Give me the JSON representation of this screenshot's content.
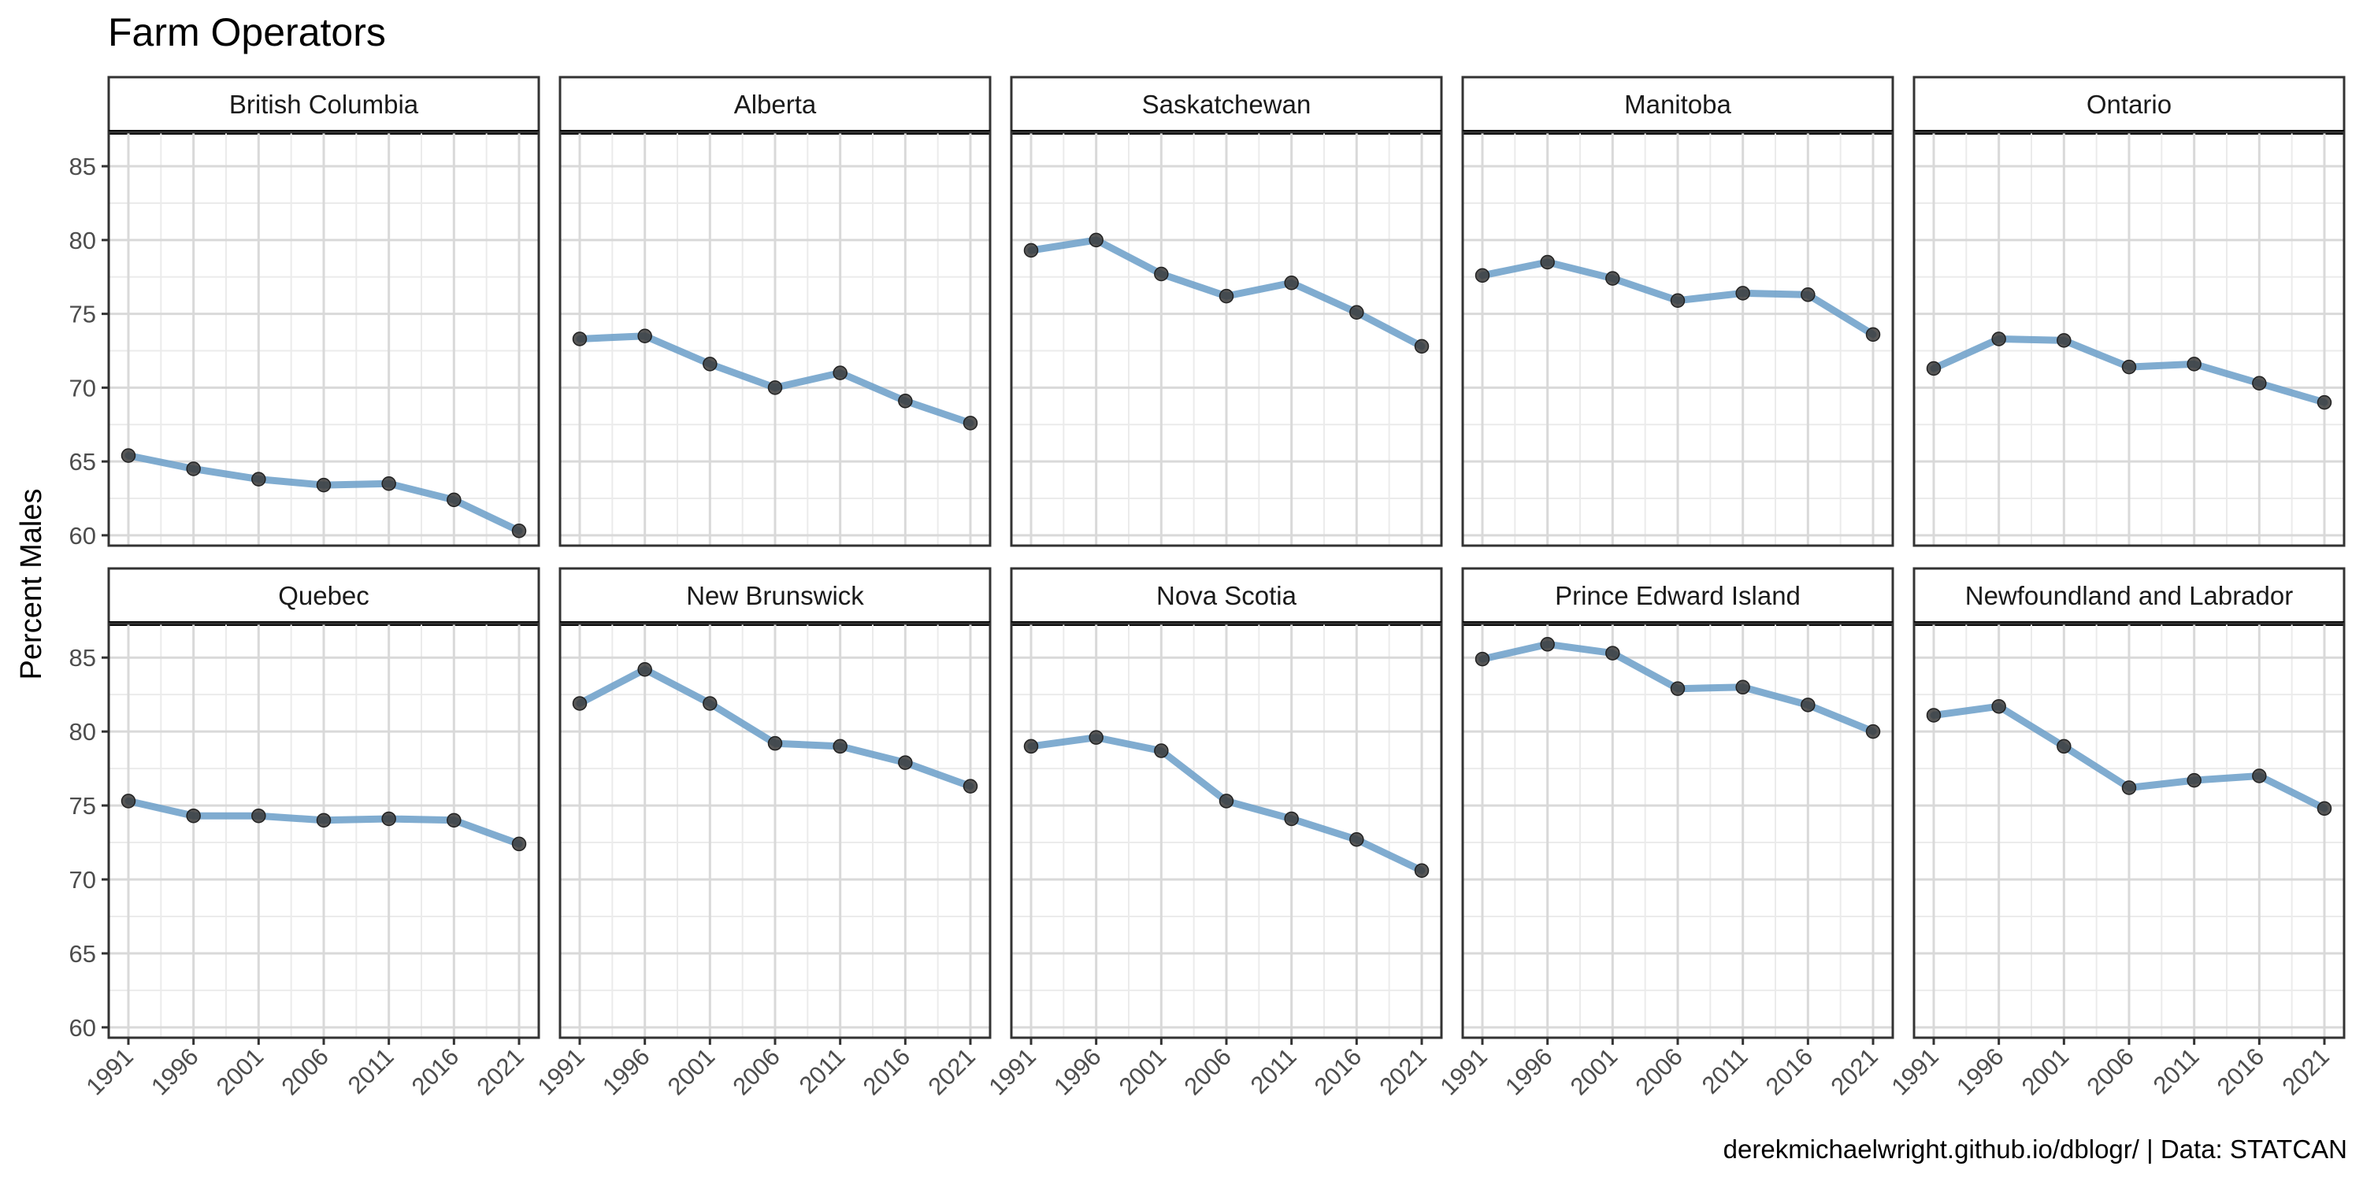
{
  "title": "Farm Operators",
  "caption": "derekmichaelwright.github.io/dblogr/ | Data: STATCAN",
  "colors": {
    "line": "#6a9ec8",
    "point": "#3a3a3a",
    "grid": "#d9d9d9",
    "panel_border": "#333333",
    "strip_background": "#ffffff"
  },
  "chart_data": {
    "type": "line",
    "facet": "wrap",
    "facet_rows": 2,
    "facet_cols": 5,
    "ylabel": "Percent Males",
    "xlabel": "",
    "x": [
      1991,
      1996,
      2001,
      2006,
      2011,
      2016,
      2021
    ],
    "x_tick_labels": [
      "1991",
      "1996",
      "2001",
      "2006",
      "2011",
      "2016",
      "2021"
    ],
    "y_ticks": [
      60,
      65,
      70,
      75,
      80,
      85
    ],
    "ylim": [
      59.3,
      87.3
    ],
    "grid": true,
    "legend": "none",
    "panels": [
      {
        "name": "British Columbia",
        "values": [
          65.4,
          64.5,
          63.8,
          63.4,
          63.5,
          62.4,
          60.3
        ]
      },
      {
        "name": "Alberta",
        "values": [
          73.3,
          73.5,
          71.6,
          70.0,
          71.0,
          69.1,
          67.6
        ]
      },
      {
        "name": "Saskatchewan",
        "values": [
          79.3,
          80.0,
          77.7,
          76.2,
          77.1,
          75.1,
          72.8
        ]
      },
      {
        "name": "Manitoba",
        "values": [
          77.6,
          78.5,
          77.4,
          75.9,
          76.4,
          76.3,
          73.6
        ]
      },
      {
        "name": "Ontario",
        "values": [
          71.3,
          73.3,
          73.2,
          71.4,
          71.6,
          70.3,
          69.0
        ]
      },
      {
        "name": "Quebec",
        "values": [
          75.3,
          74.3,
          74.3,
          74.0,
          74.1,
          74.0,
          72.4
        ]
      },
      {
        "name": "New Brunswick",
        "values": [
          81.9,
          84.2,
          81.9,
          79.2,
          79.0,
          77.9,
          76.3
        ]
      },
      {
        "name": "Nova Scotia",
        "values": [
          79.0,
          79.6,
          78.7,
          75.3,
          74.1,
          72.7,
          70.6
        ]
      },
      {
        "name": "Prince Edward Island",
        "values": [
          84.9,
          85.9,
          85.3,
          82.9,
          83.0,
          81.8,
          80.0
        ]
      },
      {
        "name": "Newfoundland and Labrador",
        "values": [
          81.1,
          81.7,
          79.0,
          76.2,
          76.7,
          77.0,
          74.8
        ]
      }
    ]
  }
}
